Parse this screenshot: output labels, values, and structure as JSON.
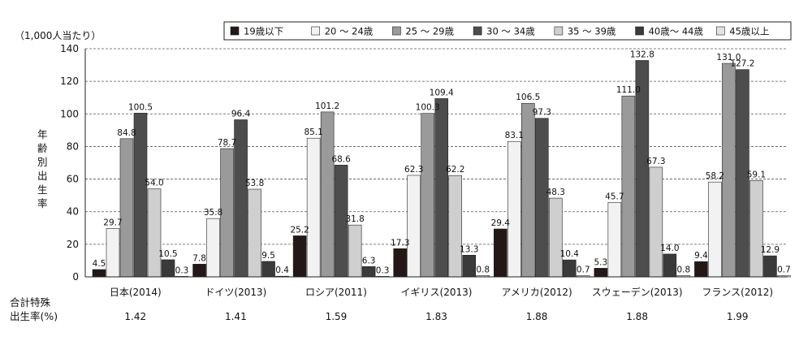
{
  "chart_data": {
    "type": "bar",
    "unit_label": "（1,000人当たり）",
    "ylabel": "年齢別出生率",
    "ylim": [
      0,
      140
    ],
    "yticks": [
      "0",
      "20",
      "40",
      "60",
      "80",
      "100",
      "120",
      "140"
    ],
    "grid": true,
    "legend_position": "top-right",
    "categories": [
      "日本(2014)",
      "ドイツ(2013)",
      "ロシア(2011)",
      "イギリス(2013)",
      "アメリカ(2012)",
      "スウェーデン(2013)",
      "フランス(2012)"
    ],
    "series": [
      {
        "name": "19歳以下",
        "color": "#231815",
        "values": [
          4.5,
          7.8,
          25.2,
          17.3,
          29.4,
          5.3,
          9.4
        ]
      },
      {
        "name": "20 ～ 24歳",
        "color": "#f2f2f2",
        "values": [
          29.7,
          35.8,
          85.1,
          62.3,
          83.1,
          45.7,
          58.2
        ]
      },
      {
        "name": "25 ～ 29歳",
        "color": "#9a9a9a",
        "values": [
          84.8,
          78.7,
          101.2,
          100.3,
          106.5,
          111.0,
          131.0
        ]
      },
      {
        "name": "30 ～ 34歳",
        "color": "#4d4d4d",
        "values": [
          100.5,
          96.4,
          68.6,
          109.4,
          97.3,
          132.8,
          127.2
        ]
      },
      {
        "name": "35 ～ 39歳",
        "color": "#cfcfcf",
        "values": [
          54.0,
          53.8,
          31.8,
          62.2,
          48.3,
          67.3,
          59.1
        ]
      },
      {
        "name": "40歳～ 44歳",
        "color": "#3a3a3a",
        "values": [
          10.5,
          9.5,
          6.3,
          13.3,
          10.4,
          14.0,
          12.9
        ]
      },
      {
        "name": "45歳以上",
        "color": "#e3e3e3",
        "values": [
          0.3,
          0.4,
          0.3,
          0.8,
          0.7,
          0.8,
          0.7
        ]
      }
    ],
    "data_labels": [
      [
        "4.5",
        "29.7",
        "84.8",
        "100.5",
        "54.0",
        "10.5",
        "0.3"
      ],
      [
        "7.8",
        "35.8",
        "78.7",
        "96.4",
        "53.8",
        "9.5",
        "0.4"
      ],
      [
        "25.2",
        "85.1",
        "101.2",
        "68.6",
        "31.8",
        "6.3",
        "0.3"
      ],
      [
        "17.3",
        "62.3",
        "100.3",
        "109.4",
        "62.2",
        "13.3",
        "0.8"
      ],
      [
        "29.4",
        "83.1",
        "106.5",
        "97.3",
        "48.3",
        "10.4",
        "0.7"
      ],
      [
        "5.3",
        "45.7",
        "111.0",
        "132.8",
        "67.3",
        "14.0",
        "0.8"
      ],
      [
        "9.4",
        "58.2",
        "131.0",
        "127.2",
        "59.1",
        "12.9",
        "0.7"
      ]
    ],
    "tfr": {
      "label_line1": "合計特殊",
      "label_line2": "出生率(%)",
      "values": [
        "1.42",
        "1.41",
        "1.59",
        "1.83",
        "1.88",
        "1.88",
        "1.99"
      ]
    }
  }
}
